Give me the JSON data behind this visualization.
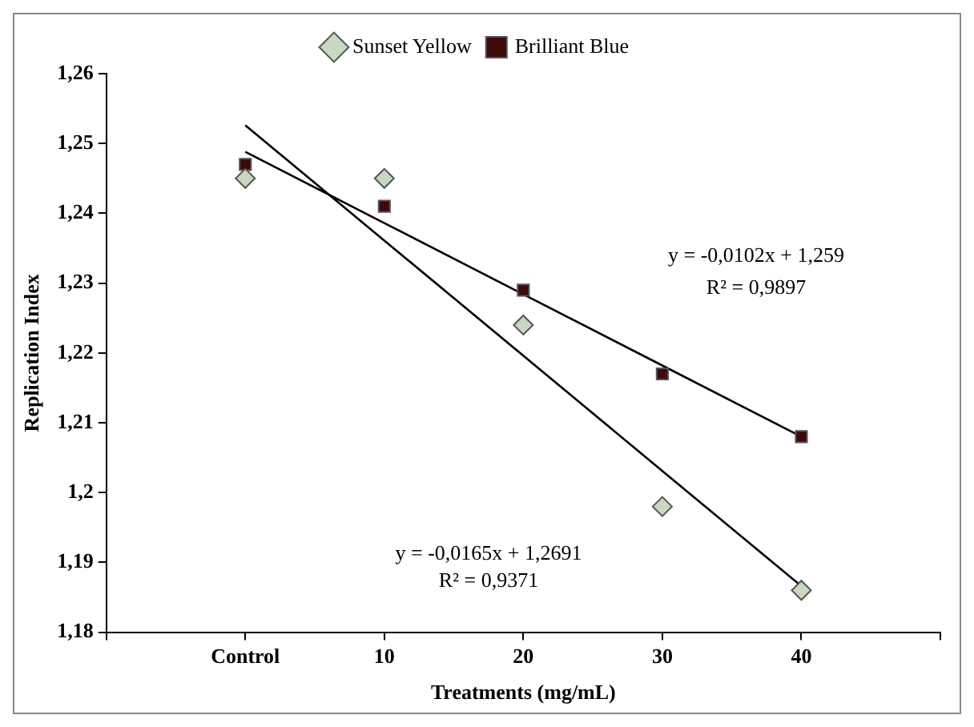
{
  "chart_data": {
    "type": "scatter",
    "xlabel": "Treatments (mg/mL)",
    "ylabel": "Replication Index",
    "categories": [
      null,
      "Control",
      "10",
      "20",
      "30",
      "40",
      null
    ],
    "series": [
      {
        "name": "Sunset Yellow",
        "marker": "diamond",
        "color": "#c9d9c1",
        "values": [
          null,
          1.245,
          1.245,
          1.224,
          1.198,
          1.186,
          null
        ]
      },
      {
        "name": "Brilliant Blue",
        "marker": "square",
        "color": "#3d0a0a",
        "values": [
          null,
          1.247,
          1.241,
          1.229,
          1.217,
          1.208,
          null
        ]
      },
      {
        "type": "line",
        "marker": "none",
        "color": "#000000",
        "values": [
          null,
          1.2488,
          1.2386,
          1.2284,
          1.2182,
          1.208,
          null
        ]
      },
      {
        "type": "line",
        "marker": "none",
        "color": "#000000",
        "values": [
          null,
          1.2526,
          1.2361,
          1.2196,
          1.2031,
          1.1866,
          null
        ]
      }
    ],
    "ylim": [
      1.18,
      1.26
    ],
    "yticks": [
      {
        "value": 1.18,
        "label": "1,18"
      },
      {
        "value": 1.19,
        "label": "1,19"
      },
      {
        "value": 1.2,
        "label": "1,2"
      },
      {
        "value": 1.21,
        "label": "1,21"
      },
      {
        "value": 1.22,
        "label": "1,22"
      },
      {
        "value": 1.23,
        "label": "1,23"
      },
      {
        "value": 1.24,
        "label": "1,24"
      },
      {
        "value": 1.25,
        "label": "1,25"
      },
      {
        "value": 1.26,
        "label": "1,26"
      }
    ],
    "annotations": [
      "y = -0,0102x + 1,259",
      "R² = 0,9897",
      "y = -0,0165x + 1,2691",
      "R² = 0,9371"
    ],
    "grid": false,
    "legend": "top"
  }
}
